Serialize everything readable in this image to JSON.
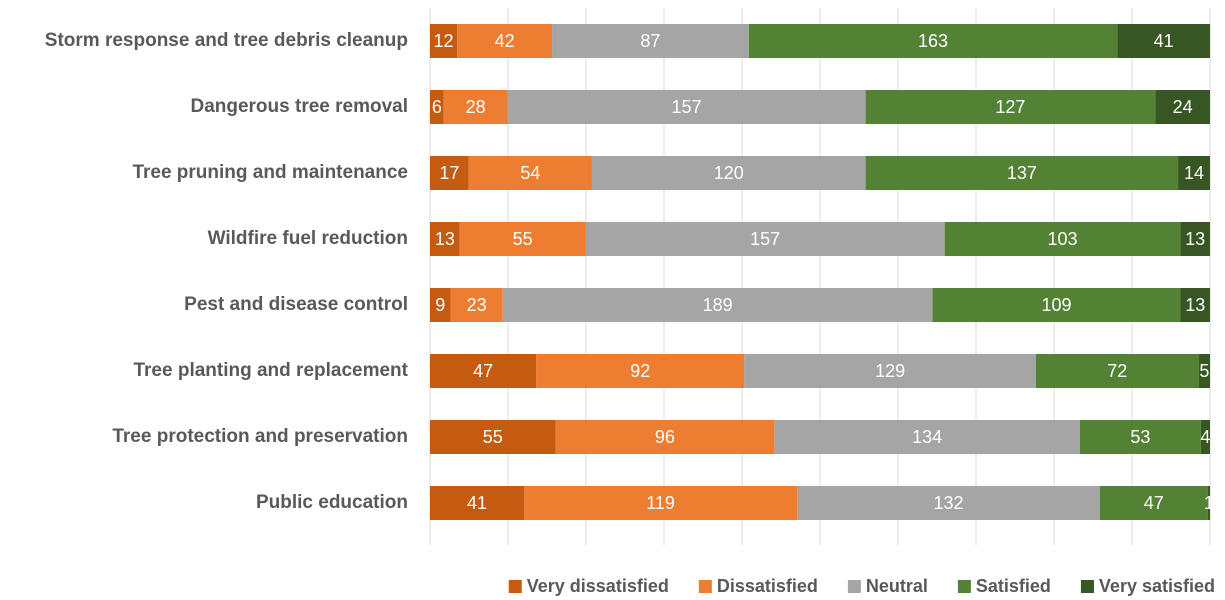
{
  "chart_data": {
    "type": "bar",
    "orientation": "horizontal",
    "stack": "percent",
    "categories": [
      "Storm response and tree debris cleanup",
      "Dangerous tree removal",
      "Tree pruning and maintenance",
      "Wildfire fuel reduction",
      "Pest and disease control",
      "Tree planting and replacement",
      "Tree protection and preservation",
      "Public education"
    ],
    "series": [
      {
        "name": "Very dissatisfied",
        "color": "#c55a11",
        "values": [
          12,
          6,
          17,
          13,
          9,
          47,
          55,
          41
        ]
      },
      {
        "name": "Dissatisfied",
        "color": "#ed7d31",
        "values": [
          42,
          28,
          54,
          55,
          23,
          92,
          96,
          119
        ]
      },
      {
        "name": "Neutral",
        "color": "#a5a5a5",
        "values": [
          87,
          157,
          120,
          157,
          189,
          129,
          134,
          132
        ]
      },
      {
        "name": "Satisfied",
        "color": "#548235",
        "values": [
          163,
          127,
          137,
          103,
          109,
          72,
          53,
          47
        ]
      },
      {
        "name": "Very satisfied",
        "color": "#375623",
        "values": [
          41,
          24,
          14,
          13,
          13,
          5,
          4,
          1
        ]
      }
    ],
    "xlim": [
      0,
      100
    ],
    "xticks": [
      0,
      10,
      20,
      30,
      40,
      50,
      60,
      70,
      80,
      90,
      100
    ],
    "grid": true,
    "legend": "bottom"
  }
}
